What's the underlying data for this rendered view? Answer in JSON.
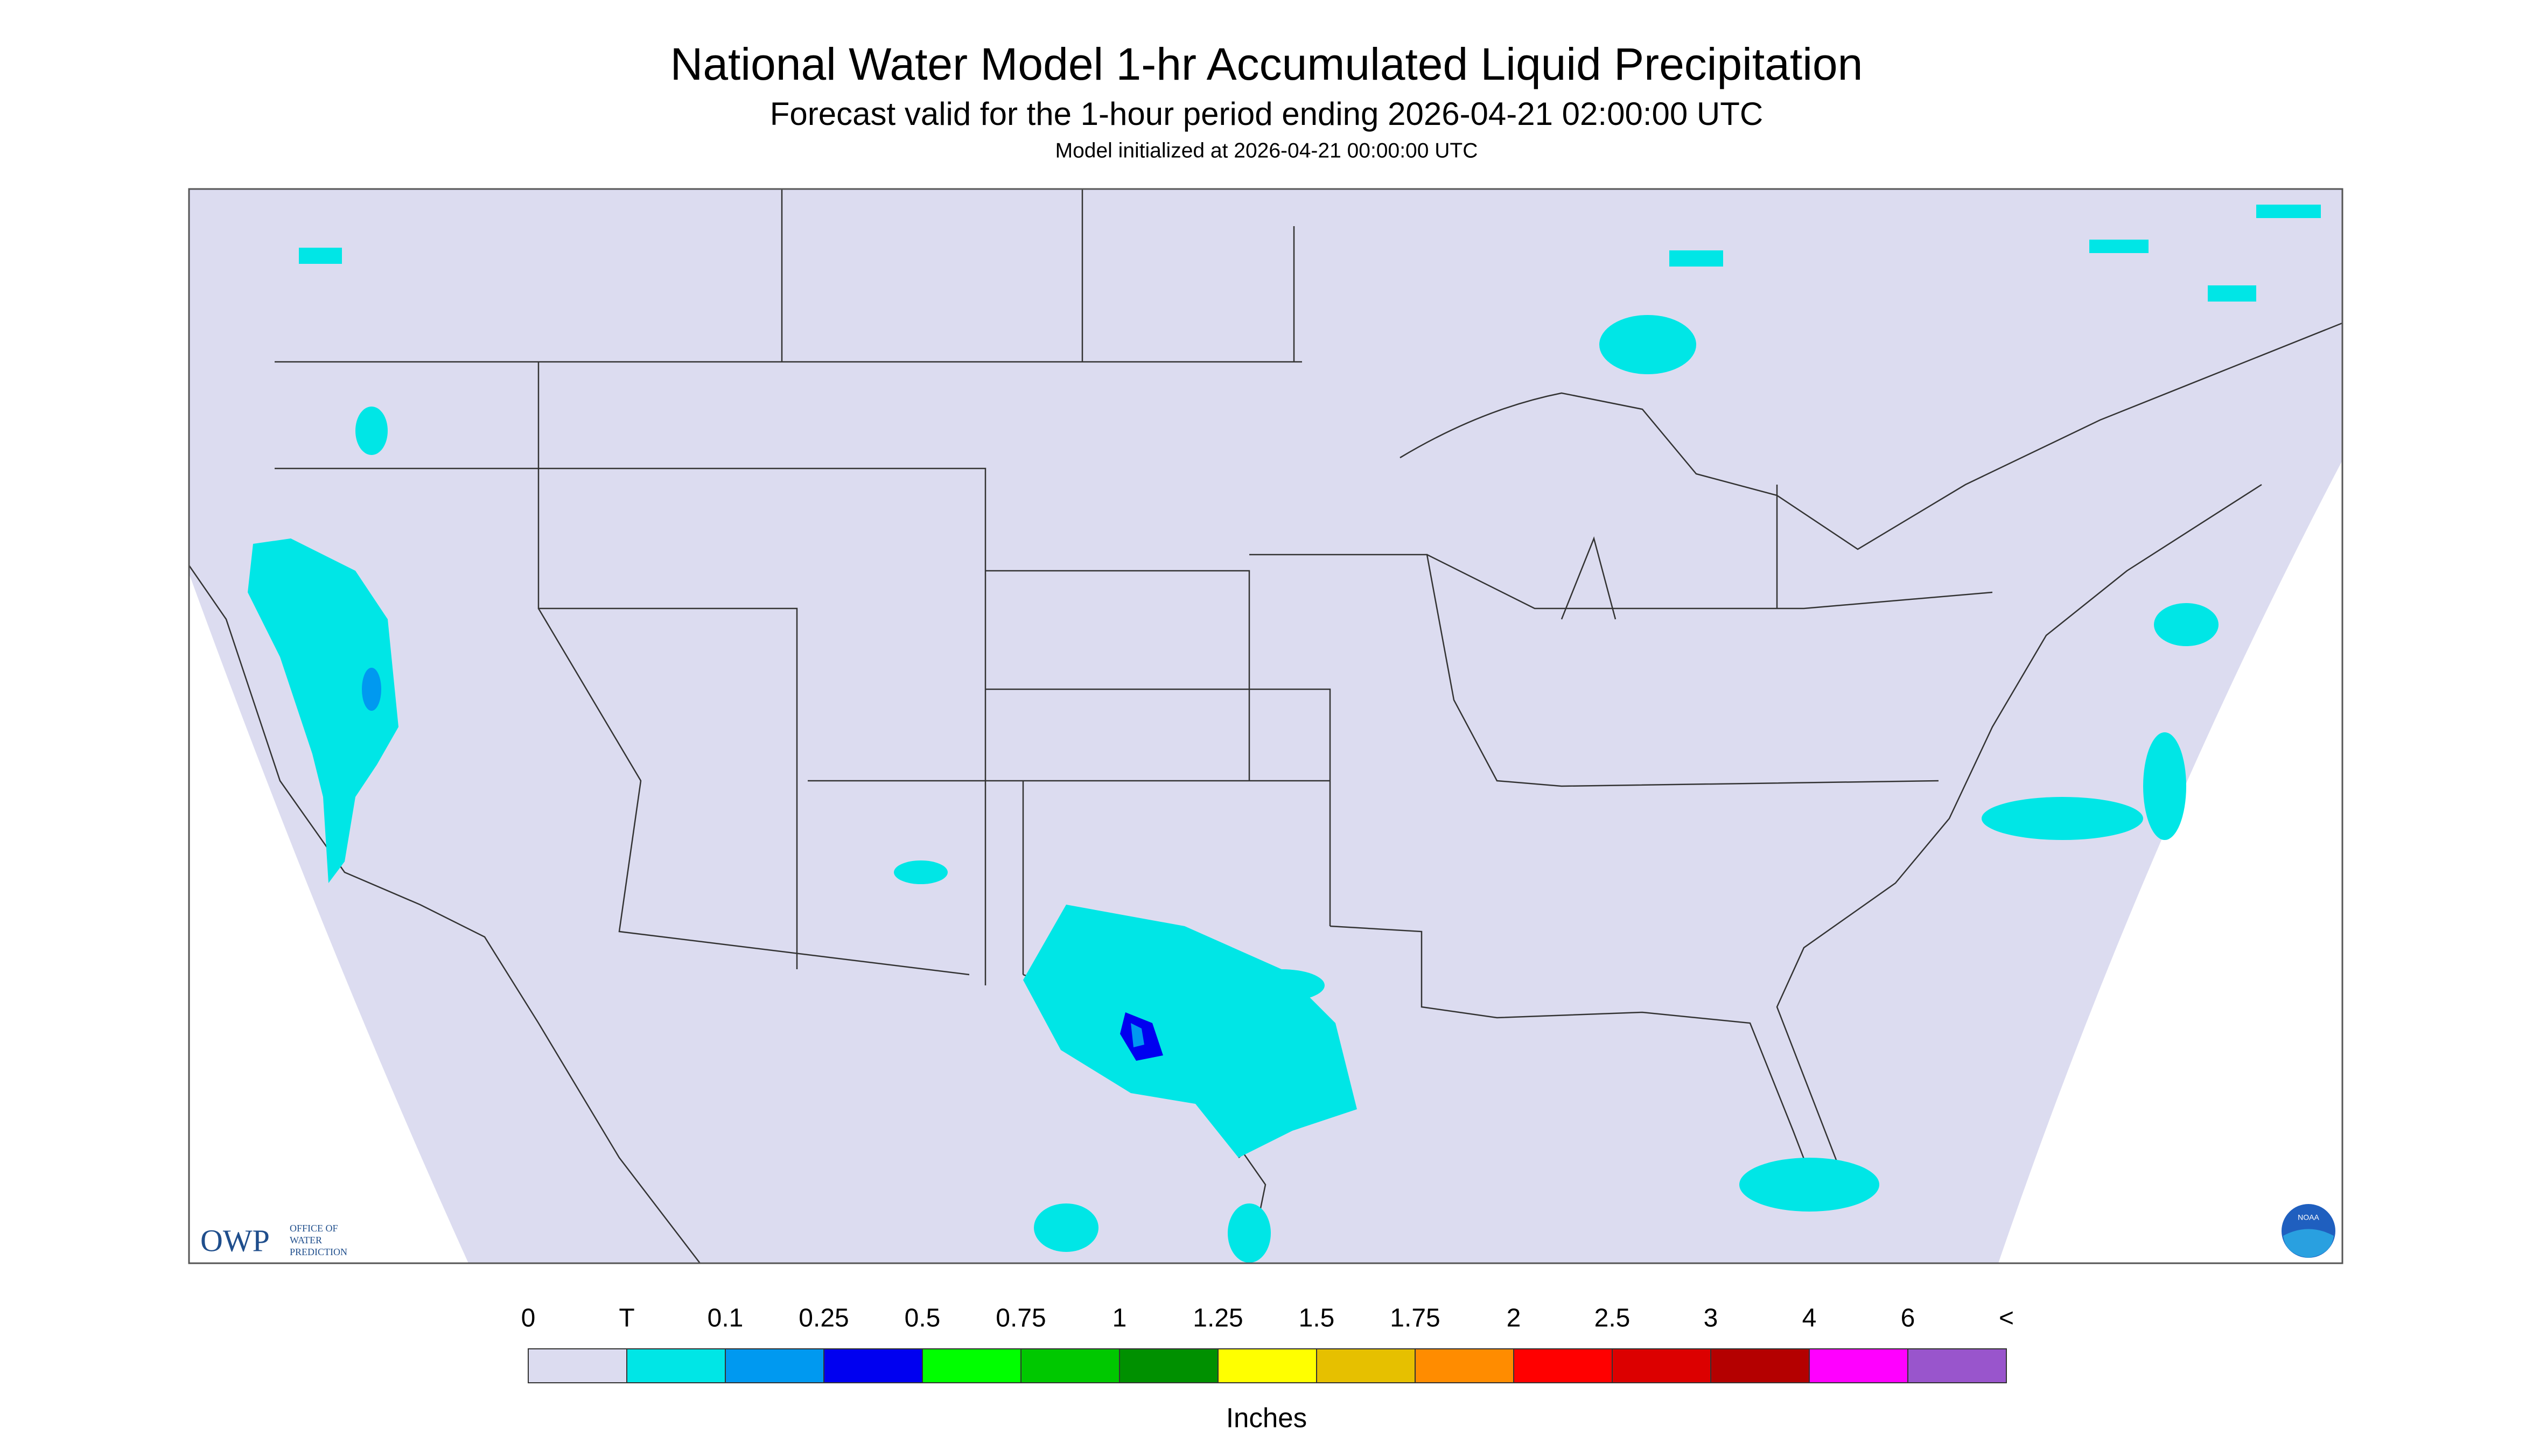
{
  "header": {
    "title": "National Water Model 1-hr Accumulated Liquid Precipitation",
    "subtitle": "Forecast valid for the 1-hour period ending 2026-04-21 02:00:00 UTC",
    "initialized": "Model initialized at 2026-04-21 00:00:00 UTC"
  },
  "legend": {
    "labels": [
      "0",
      "T",
      "0.1",
      "0.25",
      "0.5",
      "0.75",
      "1",
      "1.25",
      "1.5",
      "1.75",
      "2",
      "2.5",
      "3",
      "4",
      "6",
      "<"
    ],
    "colors": [
      "#dcdcf0",
      "#00e6e6",
      "#0099f0",
      "#0000f0",
      "#00ff00",
      "#00c800",
      "#009000",
      "#ffff00",
      "#e6c000",
      "#ff8c00",
      "#ff0000",
      "#dc0000",
      "#b40000",
      "#ff00ff",
      "#9955cc"
    ],
    "unit": "Inches"
  },
  "logos": {
    "owp": "OWP",
    "owp_name": [
      "OFFICE OF",
      "WATER",
      "PREDICTION"
    ],
    "noaa": "NOAA"
  }
}
